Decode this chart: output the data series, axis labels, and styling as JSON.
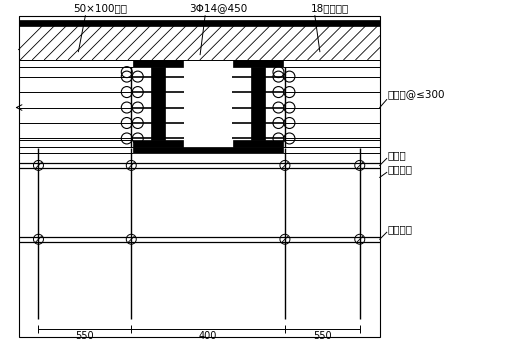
{
  "label_50x100": "50×100木枚",
  "label_3phi": "3Φ14@450",
  "label_18": "18厚胶合板",
  "label_small": "小横杆@≤300",
  "label_big": "大横杆",
  "label_steel": "钉管立杆",
  "label_horiz": "水平拉杆",
  "dim_550a": "550",
  "dim_400": "400",
  "dim_550b": "550"
}
